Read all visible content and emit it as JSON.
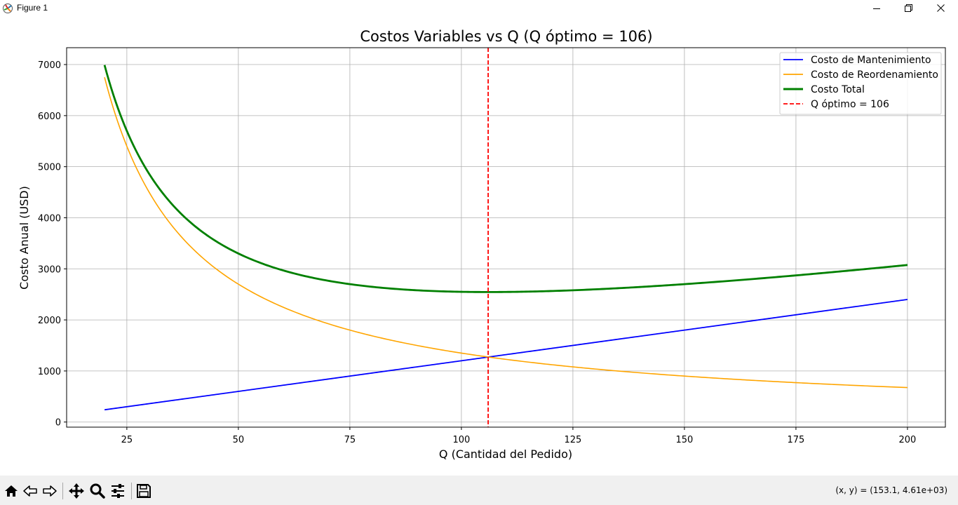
{
  "window": {
    "title": "Figure 1",
    "icon": "matplotlib-logo-icon",
    "controls": [
      "minimize-icon",
      "restore-icon",
      "close-icon"
    ]
  },
  "chart_data": {
    "type": "line",
    "title": "Costos Variables vs Q (Q óptimo = 106)",
    "xlabel": "Q (Cantidad del Pedido)",
    "ylabel": "Costo Anual (USD)",
    "xlim": [
      11.5,
      208.5
    ],
    "ylim": [
      -100,
      7330
    ],
    "xticks": [
      25,
      50,
      75,
      100,
      125,
      150,
      175,
      200
    ],
    "yticks": [
      0,
      1000,
      2000,
      3000,
      4000,
      5000,
      6000,
      7000
    ],
    "grid": true,
    "legend_position": "top-right",
    "x_range": [
      20,
      200
    ],
    "models": {
      "mantenimiento": "12 * Q",
      "reordenamiento": "135000 / Q",
      "total": "12 * Q + 135000 / Q"
    },
    "series": [
      {
        "name": "Costo de Mantenimiento",
        "color": "#0000ff",
        "style": "solid",
        "x": [
          20,
          40,
          60,
          80,
          100,
          106,
          120,
          140,
          160,
          180,
          200
        ],
        "y": [
          240,
          480,
          720,
          960,
          1200,
          1272,
          1440,
          1680,
          1920,
          2160,
          2400
        ]
      },
      {
        "name": "Costo de Reordenamiento",
        "color": "#ffa500",
        "style": "solid",
        "x": [
          20,
          25,
          30,
          40,
          50,
          60,
          80,
          100,
          106,
          120,
          140,
          160,
          180,
          200
        ],
        "y": [
          6750,
          5400,
          4500,
          3375,
          2700,
          2250,
          1688,
          1350,
          1274,
          1125,
          964,
          844,
          750,
          675
        ]
      },
      {
        "name": "Costo Total",
        "color": "#008000",
        "style": "solid",
        "x": [
          20,
          25,
          30,
          40,
          50,
          60,
          80,
          100,
          106,
          120,
          140,
          160,
          180,
          200
        ],
        "y": [
          6990,
          5700,
          4860,
          3855,
          3300,
          2970,
          2648,
          2550,
          2546,
          2565,
          2644,
          2764,
          2910,
          3075
        ]
      },
      {
        "name": "Q óptimo = 106",
        "color": "#ff0000",
        "style": "dashed",
        "vertical_x": 106
      }
    ]
  },
  "toolbar": {
    "tools": [
      {
        "name": "home-icon"
      },
      {
        "name": "back-arrow-icon"
      },
      {
        "name": "forward-arrow-icon"
      },
      {
        "name": "pan-move-icon"
      },
      {
        "name": "zoom-magnifier-icon"
      },
      {
        "name": "configure-subplots-icon"
      },
      {
        "name": "save-floppy-icon"
      }
    ],
    "coords_text": "(x, y) = (153.1, 4.61e+03)"
  }
}
